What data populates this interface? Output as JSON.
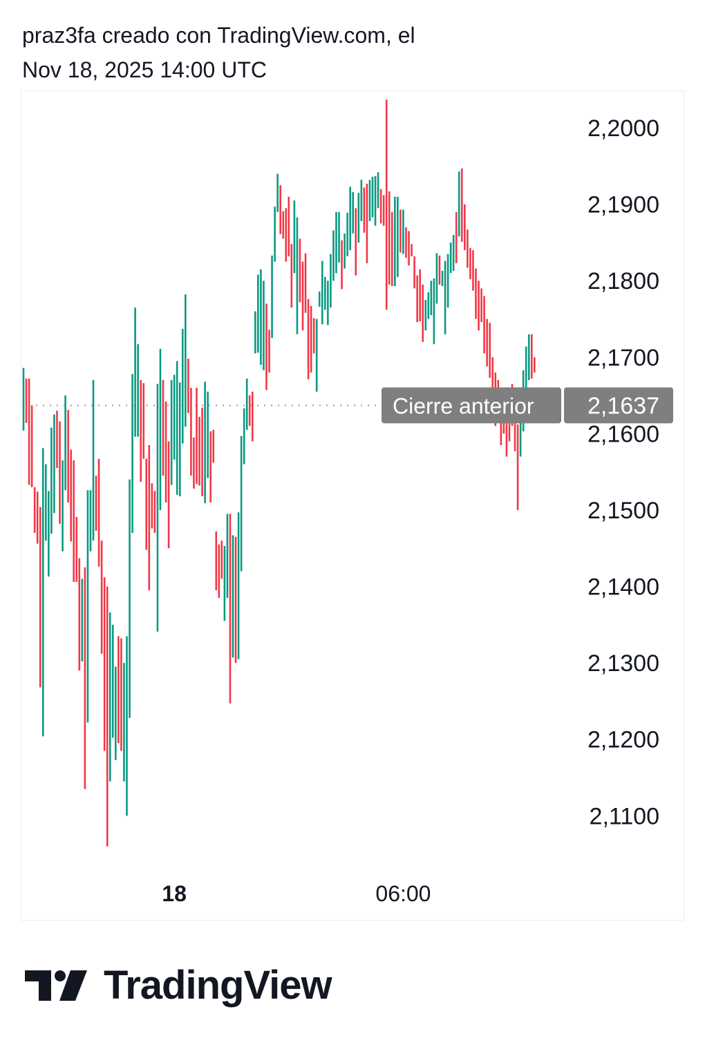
{
  "header": {
    "line1": "praz3fa creado con TradingView.com, el",
    "line2": "Nov 18, 2025 14:00 UTC"
  },
  "brand": {
    "name": "TradingView",
    "icon": "tradingview-logo-icon"
  },
  "colors": {
    "up": "#089981",
    "down": "#f23645",
    "label_bg": "#7f7f7f",
    "text": "#131722",
    "prev_close_line": "#999999"
  },
  "chart_data": {
    "type": "ohlc_bar",
    "ylim": [
      2.1037,
      2.2048
    ],
    "y_ticks": [
      {
        "value": 2.2,
        "label": "2,2000"
      },
      {
        "value": 2.19,
        "label": "2,1900"
      },
      {
        "value": 2.18,
        "label": "2,1800"
      },
      {
        "value": 2.17,
        "label": "2,1700"
      },
      {
        "value": 2.16,
        "label": "2,1600"
      },
      {
        "value": 2.15,
        "label": "2,1500"
      },
      {
        "value": 2.14,
        "label": "2,1400"
      },
      {
        "value": 2.13,
        "label": "2,1300"
      },
      {
        "value": 2.12,
        "label": "2,1200"
      },
      {
        "value": 2.11,
        "label": "2,1100"
      }
    ],
    "x_ticks": [
      {
        "index": 54,
        "label": "18",
        "bold": true
      },
      {
        "index": 136,
        "label": "06:00",
        "bold": false
      }
    ],
    "previous_close": {
      "value": 2.1637,
      "label": "Cierre anterior",
      "value_label": "2,1637"
    },
    "bars": [
      {
        "h": 2.1686,
        "l": 2.1604,
        "dir": "up"
      },
      {
        "h": 2.1672,
        "l": 2.1614,
        "dir": "down"
      },
      {
        "h": 2.1672,
        "l": 2.1533,
        "dir": "down"
      },
      {
        "h": 2.1637,
        "l": 2.153,
        "dir": "down"
      },
      {
        "h": 2.153,
        "l": 2.147,
        "dir": "down"
      },
      {
        "h": 2.1524,
        "l": 2.1456,
        "dir": "down"
      },
      {
        "h": 2.1504,
        "l": 2.1268,
        "dir": "down"
      },
      {
        "h": 2.1581,
        "l": 2.1204,
        "dir": "up"
      },
      {
        "h": 2.156,
        "l": 2.146,
        "dir": "up"
      },
      {
        "h": 2.1525,
        "l": 2.1413,
        "dir": "up"
      },
      {
        "h": 2.1608,
        "l": 2.1469,
        "dir": "up"
      },
      {
        "h": 2.1625,
        "l": 2.1496,
        "dir": "up"
      },
      {
        "h": 2.163,
        "l": 2.1555,
        "dir": "down"
      },
      {
        "h": 2.1616,
        "l": 2.1482,
        "dir": "down"
      },
      {
        "h": 2.1565,
        "l": 2.1446,
        "dir": "up"
      },
      {
        "h": 2.165,
        "l": 2.1526,
        "dir": "up"
      },
      {
        "h": 2.1631,
        "l": 2.151,
        "dir": "down"
      },
      {
        "h": 2.1579,
        "l": 2.1459,
        "dir": "down"
      },
      {
        "h": 2.1565,
        "l": 2.1406,
        "dir": "down"
      },
      {
        "h": 2.1491,
        "l": 2.1406,
        "dir": "down"
      },
      {
        "h": 2.1437,
        "l": 2.129,
        "dir": "down"
      },
      {
        "h": 2.141,
        "l": 2.1302,
        "dir": "up"
      },
      {
        "h": 2.1425,
        "l": 2.1135,
        "dir": "down"
      },
      {
        "h": 2.1526,
        "l": 2.1222,
        "dir": "up"
      },
      {
        "h": 2.1526,
        "l": 2.1446,
        "dir": "up"
      },
      {
        "h": 2.167,
        "l": 2.146,
        "dir": "up"
      },
      {
        "h": 2.1545,
        "l": 2.1473,
        "dir": "down"
      },
      {
        "h": 2.1567,
        "l": 2.1426,
        "dir": "down"
      },
      {
        "h": 2.146,
        "l": 2.1312,
        "dir": "down"
      },
      {
        "h": 2.1412,
        "l": 2.1185,
        "dir": "down"
      },
      {
        "h": 2.14,
        "l": 2.106,
        "dir": "down"
      },
      {
        "h": 2.1366,
        "l": 2.1145,
        "dir": "up"
      },
      {
        "h": 2.135,
        "l": 2.1202,
        "dir": "up"
      },
      {
        "h": 2.1295,
        "l": 2.1173,
        "dir": "up"
      },
      {
        "h": 2.1335,
        "l": 2.1195,
        "dir": "down"
      },
      {
        "h": 2.1332,
        "l": 2.1185,
        "dir": "down"
      },
      {
        "h": 2.13,
        "l": 2.1145,
        "dir": "up"
      },
      {
        "h": 2.1335,
        "l": 2.11,
        "dir": "up"
      },
      {
        "h": 2.154,
        "l": 2.1228,
        "dir": "up"
      },
      {
        "h": 2.1678,
        "l": 2.147,
        "dir": "up"
      },
      {
        "h": 2.1765,
        "l": 2.1596,
        "dir": "up"
      },
      {
        "h": 2.1717,
        "l": 2.1596,
        "dir": "up"
      },
      {
        "h": 2.167,
        "l": 2.1537,
        "dir": "down"
      },
      {
        "h": 2.1666,
        "l": 2.1567,
        "dir": "down"
      },
      {
        "h": 2.1567,
        "l": 2.1448,
        "dir": "down"
      },
      {
        "h": 2.1585,
        "l": 2.1395,
        "dir": "down"
      },
      {
        "h": 2.1535,
        "l": 2.1476,
        "dir": "down"
      },
      {
        "h": 2.1525,
        "l": 2.147,
        "dir": "down"
      },
      {
        "h": 2.1665,
        "l": 2.1341,
        "dir": "up"
      },
      {
        "h": 2.1711,
        "l": 2.15,
        "dir": "up"
      },
      {
        "h": 2.167,
        "l": 2.1545,
        "dir": "down"
      },
      {
        "h": 2.1642,
        "l": 2.151,
        "dir": "down"
      },
      {
        "h": 2.159,
        "l": 2.145,
        "dir": "down"
      },
      {
        "h": 2.167,
        "l": 2.1533,
        "dir": "up"
      },
      {
        "h": 2.1677,
        "l": 2.1566,
        "dir": "up"
      },
      {
        "h": 2.1695,
        "l": 2.152,
        "dir": "up"
      },
      {
        "h": 2.1667,
        "l": 2.1518,
        "dir": "up"
      },
      {
        "h": 2.1737,
        "l": 2.1587,
        "dir": "up"
      },
      {
        "h": 2.1782,
        "l": 2.1609,
        "dir": "up"
      },
      {
        "h": 2.1698,
        "l": 2.1627,
        "dir": "down"
      },
      {
        "h": 2.166,
        "l": 2.1545,
        "dir": "down"
      },
      {
        "h": 2.1595,
        "l": 2.1528,
        "dir": "down"
      },
      {
        "h": 2.166,
        "l": 2.1534,
        "dir": "down"
      },
      {
        "h": 2.1622,
        "l": 2.1532,
        "dir": "down"
      },
      {
        "h": 2.1634,
        "l": 2.1518,
        "dir": "down"
      },
      {
        "h": 2.1668,
        "l": 2.1509,
        "dir": "up"
      },
      {
        "h": 2.1655,
        "l": 2.1542,
        "dir": "up"
      },
      {
        "h": 2.1603,
        "l": 2.151,
        "dir": "down"
      },
      {
        "h": 2.1605,
        "l": 2.1562,
        "dir": "down"
      },
      {
        "h": 2.1472,
        "l": 2.1395,
        "dir": "down"
      },
      {
        "h": 2.1455,
        "l": 2.1385,
        "dir": "down"
      },
      {
        "h": 2.146,
        "l": 2.141,
        "dir": "down"
      },
      {
        "h": 2.1453,
        "l": 2.1355,
        "dir": "up"
      },
      {
        "h": 2.1495,
        "l": 2.1385,
        "dir": "up"
      },
      {
        "h": 2.1495,
        "l": 2.1247,
        "dir": "down"
      },
      {
        "h": 2.1467,
        "l": 2.1307,
        "dir": "up"
      },
      {
        "h": 2.1465,
        "l": 2.13,
        "dir": "down"
      },
      {
        "h": 2.1497,
        "l": 2.1305,
        "dir": "up"
      },
      {
        "h": 2.1597,
        "l": 2.142,
        "dir": "up"
      },
      {
        "h": 2.1633,
        "l": 2.156,
        "dir": "up"
      },
      {
        "h": 2.1672,
        "l": 2.1605,
        "dir": "up"
      },
      {
        "h": 2.165,
        "l": 2.161,
        "dir": "down"
      },
      {
        "h": 2.1655,
        "l": 2.159,
        "dir": "down"
      },
      {
        "h": 2.176,
        "l": 2.1705,
        "dir": "up"
      },
      {
        "h": 2.1808,
        "l": 2.1706,
        "dir": "up"
      },
      {
        "h": 2.1815,
        "l": 2.169,
        "dir": "up"
      },
      {
        "h": 2.18,
        "l": 2.1683,
        "dir": "up"
      },
      {
        "h": 2.177,
        "l": 2.1657,
        "dir": "down"
      },
      {
        "h": 2.1736,
        "l": 2.168,
        "dir": "down"
      },
      {
        "h": 2.1833,
        "l": 2.1725,
        "dir": "up"
      },
      {
        "h": 2.1897,
        "l": 2.1825,
        "dir": "up"
      },
      {
        "h": 2.194,
        "l": 2.189,
        "dir": "up"
      },
      {
        "h": 2.1925,
        "l": 2.1861,
        "dir": "down"
      },
      {
        "h": 2.1891,
        "l": 2.1855,
        "dir": "down"
      },
      {
        "h": 2.1895,
        "l": 2.1825,
        "dir": "down"
      },
      {
        "h": 2.191,
        "l": 2.1832,
        "dir": "down"
      },
      {
        "h": 2.1848,
        "l": 2.1765,
        "dir": "down"
      },
      {
        "h": 2.1905,
        "l": 2.181,
        "dir": "up"
      },
      {
        "h": 2.1883,
        "l": 2.173,
        "dir": "up"
      },
      {
        "h": 2.1855,
        "l": 2.1772,
        "dir": "down"
      },
      {
        "h": 2.1825,
        "l": 2.1735,
        "dir": "down"
      },
      {
        "h": 2.1836,
        "l": 2.1758,
        "dir": "down"
      },
      {
        "h": 2.1776,
        "l": 2.1671,
        "dir": "down"
      },
      {
        "h": 2.1767,
        "l": 2.168,
        "dir": "down"
      },
      {
        "h": 2.1751,
        "l": 2.1705,
        "dir": "down"
      },
      {
        "h": 2.175,
        "l": 2.1655,
        "dir": "up"
      },
      {
        "h": 2.1786,
        "l": 2.1766,
        "dir": "up"
      },
      {
        "h": 2.1826,
        "l": 2.1743,
        "dir": "up"
      },
      {
        "h": 2.1805,
        "l": 2.1762,
        "dir": "up"
      },
      {
        "h": 2.18,
        "l": 2.1742,
        "dir": "up"
      },
      {
        "h": 2.1835,
        "l": 2.1765,
        "dir": "up"
      },
      {
        "h": 2.1866,
        "l": 2.18,
        "dir": "up"
      },
      {
        "h": 2.189,
        "l": 2.181,
        "dir": "up"
      },
      {
        "h": 2.189,
        "l": 2.1824,
        "dir": "up"
      },
      {
        "h": 2.1853,
        "l": 2.1789,
        "dir": "down"
      },
      {
        "h": 2.1862,
        "l": 2.1816,
        "dir": "up"
      },
      {
        "h": 2.1889,
        "l": 2.1832,
        "dir": "up"
      },
      {
        "h": 2.1923,
        "l": 2.184,
        "dir": "up"
      },
      {
        "h": 2.1916,
        "l": 2.1862,
        "dir": "up"
      },
      {
        "h": 2.1895,
        "l": 2.1807,
        "dir": "down"
      },
      {
        "h": 2.1915,
        "l": 2.185,
        "dir": "up"
      },
      {
        "h": 2.1932,
        "l": 2.1878,
        "dir": "up"
      },
      {
        "h": 2.1922,
        "l": 2.1863,
        "dir": "down"
      },
      {
        "h": 2.1927,
        "l": 2.1823,
        "dir": "down"
      },
      {
        "h": 2.1932,
        "l": 2.1878,
        "dir": "up"
      },
      {
        "h": 2.1936,
        "l": 2.1883,
        "dir": "up"
      },
      {
        "h": 2.1937,
        "l": 2.1872,
        "dir": "up"
      },
      {
        "h": 2.1942,
        "l": 2.1895,
        "dir": "up"
      },
      {
        "h": 2.192,
        "l": 2.1875,
        "dir": "down"
      },
      {
        "h": 2.1912,
        "l": 2.1872,
        "dir": "down"
      },
      {
        "h": 2.2037,
        "l": 2.1762,
        "dir": "down"
      },
      {
        "h": 2.1917,
        "l": 2.1795,
        "dir": "down"
      },
      {
        "h": 2.189,
        "l": 2.1793,
        "dir": "down"
      },
      {
        "h": 2.191,
        "l": 2.1793,
        "dir": "up"
      },
      {
        "h": 2.191,
        "l": 2.1805,
        "dir": "up"
      },
      {
        "h": 2.1893,
        "l": 2.1837,
        "dir": "down"
      },
      {
        "h": 2.1893,
        "l": 2.1835,
        "dir": "up"
      },
      {
        "h": 2.187,
        "l": 2.183,
        "dir": "down"
      },
      {
        "h": 2.1865,
        "l": 2.182,
        "dir": "down"
      },
      {
        "h": 2.1848,
        "l": 2.1832,
        "dir": "down"
      },
      {
        "h": 2.1832,
        "l": 2.179,
        "dir": "down"
      },
      {
        "h": 2.1807,
        "l": 2.1746,
        "dir": "down"
      },
      {
        "h": 2.1815,
        "l": 2.1747,
        "dir": "down"
      },
      {
        "h": 2.1795,
        "l": 2.172,
        "dir": "down"
      },
      {
        "h": 2.1775,
        "l": 2.1735,
        "dir": "up"
      },
      {
        "h": 2.1785,
        "l": 2.175,
        "dir": "up"
      },
      {
        "h": 2.18,
        "l": 2.1755,
        "dir": "up"
      },
      {
        "h": 2.1803,
        "l": 2.1717,
        "dir": "up"
      },
      {
        "h": 2.1836,
        "l": 2.177,
        "dir": "up"
      },
      {
        "h": 2.1833,
        "l": 2.1795,
        "dir": "down"
      },
      {
        "h": 2.1813,
        "l": 2.1793,
        "dir": "up"
      },
      {
        "h": 2.1826,
        "l": 2.173,
        "dir": "up"
      },
      {
        "h": 2.1835,
        "l": 2.1765,
        "dir": "up"
      },
      {
        "h": 2.185,
        "l": 2.181,
        "dir": "up"
      },
      {
        "h": 2.186,
        "l": 2.1813,
        "dir": "up"
      },
      {
        "h": 2.189,
        "l": 2.1823,
        "dir": "down"
      },
      {
        "h": 2.1943,
        "l": 2.1858,
        "dir": "up"
      },
      {
        "h": 2.1947,
        "l": 2.1851,
        "dir": "down"
      },
      {
        "h": 2.19,
        "l": 2.184,
        "dir": "down"
      },
      {
        "h": 2.1867,
        "l": 2.1817,
        "dir": "down"
      },
      {
        "h": 2.1843,
        "l": 2.1802,
        "dir": "down"
      },
      {
        "h": 2.184,
        "l": 2.1787,
        "dir": "down"
      },
      {
        "h": 2.1816,
        "l": 2.175,
        "dir": "down"
      },
      {
        "h": 2.18,
        "l": 2.1735,
        "dir": "down"
      },
      {
        "h": 2.179,
        "l": 2.1746,
        "dir": "down"
      },
      {
        "h": 2.178,
        "l": 2.1705,
        "dir": "down"
      },
      {
        "h": 2.175,
        "l": 2.1688,
        "dir": "down"
      },
      {
        "h": 2.1745,
        "l": 2.1673,
        "dir": "down"
      },
      {
        "h": 2.17,
        "l": 2.1653,
        "dir": "down"
      },
      {
        "h": 2.168,
        "l": 2.161,
        "dir": "down"
      },
      {
        "h": 2.167,
        "l": 2.1625,
        "dir": "down"
      },
      {
        "h": 2.166,
        "l": 2.1585,
        "dir": "down"
      },
      {
        "h": 2.165,
        "l": 2.16,
        "dir": "down"
      },
      {
        "h": 2.164,
        "l": 2.157,
        "dir": "down"
      },
      {
        "h": 2.163,
        "l": 2.159,
        "dir": "down"
      },
      {
        "h": 2.1665,
        "l": 2.161,
        "dir": "down"
      },
      {
        "h": 2.1658,
        "l": 2.1577,
        "dir": "down"
      },
      {
        "h": 2.1612,
        "l": 2.15,
        "dir": "down"
      },
      {
        "h": 2.1628,
        "l": 2.157,
        "dir": "up"
      },
      {
        "h": 2.1683,
        "l": 2.1603,
        "dir": "up"
      },
      {
        "h": 2.1714,
        "l": 2.1655,
        "dir": "up"
      },
      {
        "h": 2.173,
        "l": 2.167,
        "dir": "up"
      },
      {
        "h": 2.173,
        "l": 2.1672,
        "dir": "down"
      },
      {
        "h": 2.17,
        "l": 2.168,
        "dir": "down"
      }
    ]
  }
}
